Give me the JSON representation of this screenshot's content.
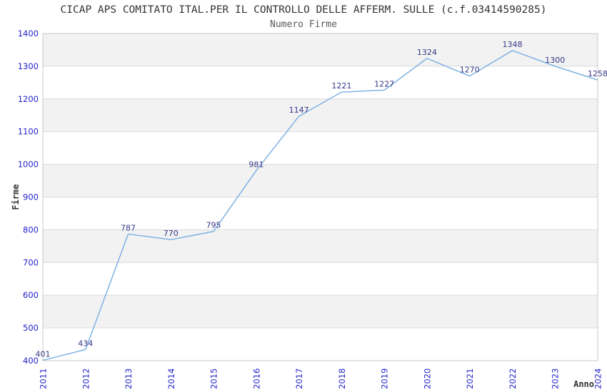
{
  "page": {
    "title": "CICAP APS COMITATO ITAL.PER IL CONTROLLO DELLE AFFERM. SULLE (c.f.03414590285)",
    "subtitle": "Numero Firme"
  },
  "chart_data": {
    "type": "line",
    "title": "CICAP APS COMITATO ITAL.PER IL CONTROLLO DELLE AFFERM. SULLE (c.f.03414590285)",
    "subtitle": "Numero Firme",
    "xlabel": "Anno",
    "ylabel": "Firme",
    "categories": [
      "2011",
      "2012",
      "2013",
      "2014",
      "2015",
      "2016",
      "2017",
      "2018",
      "2019",
      "2020",
      "2021",
      "2022",
      "2023",
      "2024"
    ],
    "series": [
      {
        "name": "Numero Firme",
        "values": [
          401,
          434,
          787,
          770,
          795,
          981,
          1147,
          1221,
          1227,
          1324,
          1270,
          1348,
          1300,
          1258
        ]
      }
    ],
    "ylim": [
      400,
      1400
    ],
    "ytick_step": 100,
    "grid": "horizontal",
    "legend": "none",
    "data_labels": true,
    "colors": {
      "line": "#77ade2",
      "tick_label": "#2424cc",
      "data_label": "#373787",
      "axis_title": "#333333",
      "band": "#f2f2f2",
      "band_alt": "#ffffff",
      "gridline": "#dcdcdc",
      "border": "#c8c8c8",
      "background": "#ffffff"
    }
  }
}
